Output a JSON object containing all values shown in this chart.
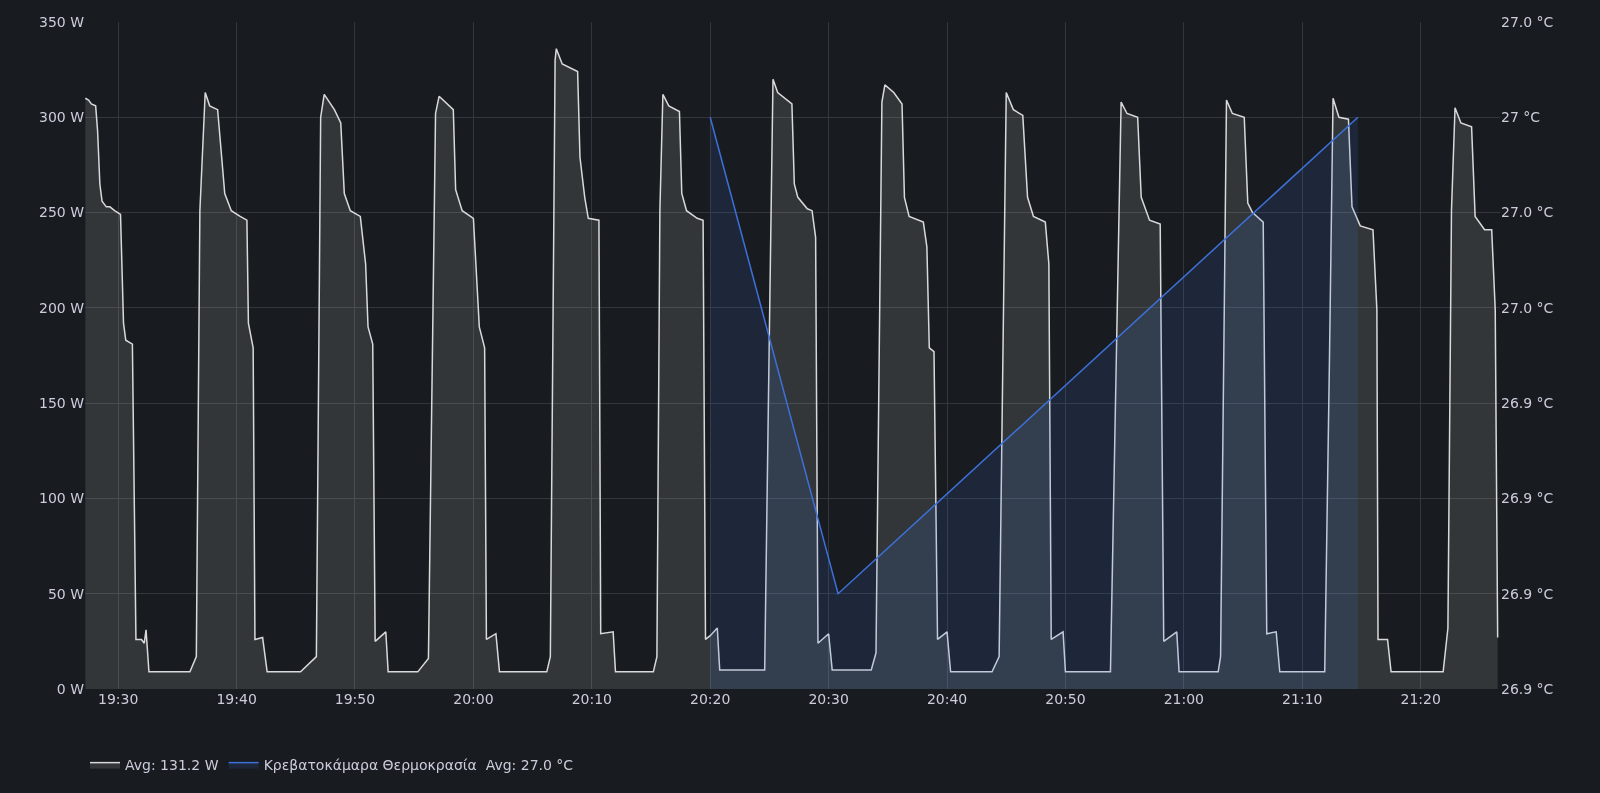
{
  "chart_data": {
    "type": "area",
    "x": [
      19.4538,
      19.4583,
      19.4622,
      19.4683,
      19.471,
      19.4742,
      19.4773,
      19.4833,
      19.4883,
      19.495,
      19.5033,
      19.5075,
      19.5107,
      19.52,
      19.525,
      19.5328,
      19.5367,
      19.5392,
      19.5433,
      19.601,
      19.61,
      19.615,
      19.6225,
      19.6288,
      19.64,
      19.65,
      19.6592,
      19.6717,
      19.6812,
      19.6833,
      19.69,
      19.6925,
      19.7033,
      19.7097,
      19.7567,
      19.779,
      19.785,
      19.79,
      19.8043,
      19.8133,
      19.8183,
      19.8267,
      19.8408,
      19.8483,
      19.8517,
      19.8583,
      19.8617,
      19.8767,
      19.88,
      19.9217,
      19.9367,
      19.9467,
      19.9517,
      19.9717,
      19.975,
      19.9842,
      20.0,
      20.0083,
      20.0158,
      20.0183,
      20.0317,
      20.0367,
      20.1033,
      20.1083,
      20.115,
      20.1167,
      20.125,
      20.1467,
      20.15,
      20.1567,
      20.1617,
      20.1767,
      20.1792,
      20.1967,
      20.2,
      20.2533,
      20.2583,
      20.2625,
      20.2667,
      20.275,
      20.29,
      20.2933,
      20.3,
      20.315,
      20.3233,
      20.3267,
      20.3333,
      20.3433,
      20.3467,
      20.41,
      20.4167,
      20.4217,
      20.4283,
      20.4483,
      20.4517,
      20.4567,
      20.47,
      20.4767,
      20.4817,
      20.485,
      20.5,
      20.505,
      20.56,
      20.5667,
      20.575,
      20.5792,
      20.5917,
      20.6033,
      20.6067,
      20.6133,
      20.6333,
      20.6383,
      20.6417,
      20.6483,
      20.6533,
      20.6667,
      20.6717,
      20.73,
      20.74,
      20.75,
      20.76,
      20.7733,
      20.78,
      20.7883,
      20.805,
      20.81,
      20.8133,
      20.83,
      20.8333,
      20.8967,
      20.9117,
      20.92,
      20.935,
      20.94,
      20.9517,
      20.9667,
      20.9717,
      20.99,
      20.9933,
      21.0483,
      21.0517,
      21.06,
      21.0683,
      21.085,
      21.09,
      21.0967,
      21.1117,
      21.1167,
      21.13,
      21.135,
      21.1983,
      21.205,
      21.21,
      21.2183,
      21.2317,
      21.2367,
      21.2483,
      21.2662,
      21.2717,
      21.2733,
      21.2867,
      21.2917,
      21.365,
      21.3717,
      21.3767,
      21.3817,
      21.39,
      21.405,
      21.41,
      21.4233,
      21.4333,
      21.4383,
      21.4417
    ],
    "series": [
      {
        "name": "Avg: 131.2 W",
        "color": "#d8d9da",
        "values": [
          310,
          309,
          307,
          306,
          293,
          265,
          256,
          253,
          253,
          251,
          249,
          192,
          183,
          181,
          26,
          26,
          24,
          31,
          9,
          9,
          17,
          251,
          313,
          306,
          304,
          260,
          251,
          248,
          246,
          192,
          179,
          26,
          27,
          9,
          9,
          17,
          300,
          312,
          304,
          297,
          260,
          251,
          248,
          223,
          190,
          181,
          25,
          30,
          9,
          9,
          16,
          302,
          311,
          304,
          262,
          251,
          247,
          190,
          179,
          26,
          29,
          9,
          9,
          17,
          330,
          336,
          328,
          324,
          279,
          258,
          247,
          246,
          29,
          30,
          9,
          9,
          17,
          251,
          312,
          306,
          303,
          260,
          251,
          247,
          246,
          26,
          28,
          32,
          10,
          10,
          190,
          320,
          313,
          307,
          265,
          258,
          252,
          251,
          237,
          24,
          29,
          10,
          10,
          19,
          308,
          317,
          313,
          307,
          258,
          248,
          245,
          232,
          179,
          177,
          26,
          30,
          9,
          9,
          17,
          313,
          304,
          301,
          258,
          248,
          245,
          223,
          26,
          30,
          9,
          9,
          308,
          302,
          300,
          258,
          246,
          244,
          25,
          30,
          9,
          9,
          17,
          309,
          302,
          300,
          255,
          250,
          245,
          29,
          30,
          9,
          9,
          174,
          310,
          300,
          299,
          253,
          243,
          241,
          199,
          26,
          26,
          9,
          9,
          32,
          251,
          305,
          297,
          295,
          248,
          241,
          241,
          199,
          27
        ]
      },
      {
        "name": "Κρεβατοκάμαρα Θερμοκρασία  Avg: 27.0 °C",
        "color": "#3d71d9",
        "axis": "y2",
        "x": [
          20.3333,
          20.5133,
          21.245
        ],
        "values": [
          27.0,
          26.9,
          27.0
        ]
      }
    ],
    "xlim": [
      19.4533,
      21.445
    ],
    "xticks": [
      {
        "value": 19.5,
        "label": "19:30"
      },
      {
        "value": 19.6667,
        "label": "19:40"
      },
      {
        "value": 19.8333,
        "label": "19:50"
      },
      {
        "value": 20,
        "label": "20:00"
      },
      {
        "value": 20.1667,
        "label": "20:10"
      },
      {
        "value": 20.3333,
        "label": "20:20"
      },
      {
        "value": 20.5,
        "label": "20:30"
      },
      {
        "value": 20.6667,
        "label": "20:40"
      },
      {
        "value": 20.8333,
        "label": "20:50"
      },
      {
        "value": 21,
        "label": "21:00"
      },
      {
        "value": 21.1667,
        "label": "21:10"
      },
      {
        "value": 21.3333,
        "label": "21:20"
      }
    ],
    "ylim": [
      0,
      350
    ],
    "yticks": [
      {
        "value": 0,
        "label": "0 W"
      },
      {
        "value": 50,
        "label": "50 W"
      },
      {
        "value": 100,
        "label": "100 W"
      },
      {
        "value": 150,
        "label": "150 W"
      },
      {
        "value": 200,
        "label": "200 W"
      },
      {
        "value": 250,
        "label": "250 W"
      },
      {
        "value": 300,
        "label": "300 W"
      },
      {
        "value": 350,
        "label": "350 W"
      }
    ],
    "y2lim": [
      26.88,
      27.02
    ],
    "y2ticks": [
      {
        "value": 26.88,
        "label": "26.9 °C"
      },
      {
        "value": 26.9,
        "label": "26.9 °C"
      },
      {
        "value": 26.92,
        "label": "26.9 °C"
      },
      {
        "value": 26.94,
        "label": "26.9 °C"
      },
      {
        "value": 26.96,
        "label": "27.0 °C"
      },
      {
        "value": 26.98,
        "label": "27.0 °C"
      },
      {
        "value": 27.0,
        "label": "27 °C"
      },
      {
        "value": 27.02,
        "label": "27.0 °C"
      }
    ],
    "grid": true,
    "legend": "bottom",
    "marker": "none",
    "line_style": "solid"
  }
}
